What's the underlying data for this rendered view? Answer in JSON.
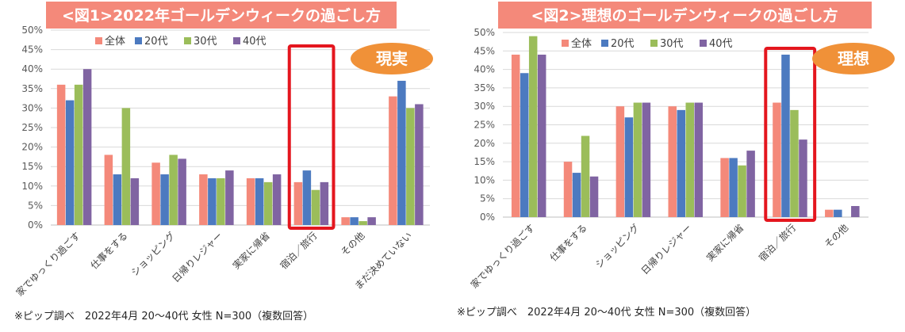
{
  "colors": {
    "title_bg": "#f4897a",
    "badge": "#f09138",
    "highlight": "#e4161e",
    "grid": "#d9d9d9",
    "series": [
      "#f4897a",
      "#4c7ac0",
      "#9bbd5a",
      "#8064a2"
    ]
  },
  "chart_data": [
    {
      "type": "bar",
      "title": "<図1>2022年ゴールデンウィークの過ごし方",
      "badge": "現実",
      "categories": [
        "家でゆっくり過ごす",
        "仕事をする",
        "ショッピング",
        "日帰りレジャー",
        "実家に帰省",
        "宿泊／旅行",
        "その他",
        "まだ決めていない"
      ],
      "series": [
        {
          "name": "全体",
          "values": [
            36,
            18,
            16,
            13,
            12,
            11,
            2,
            33
          ]
        },
        {
          "name": "20代",
          "values": [
            32,
            13,
            13,
            12,
            12,
            14,
            2,
            37
          ]
        },
        {
          "name": "30代",
          "values": [
            36,
            30,
            18,
            12,
            11,
            9,
            1,
            30
          ]
        },
        {
          "name": "40代",
          "values": [
            40,
            12,
            17,
            14,
            13,
            11,
            2,
            31
          ]
        }
      ],
      "ylim": [
        0,
        50
      ],
      "yticks": [
        "0%",
        "5%",
        "10%",
        "15%",
        "20%",
        "25%",
        "30%",
        "35%",
        "40%",
        "45%",
        "50%"
      ],
      "highlight_category": "宿泊／旅行",
      "grid": true,
      "legend": "top",
      "source": "※ピップ調べ　2022年4月 20～40代 女性 N=300（複数回答）"
    },
    {
      "type": "bar",
      "title": "<図2>理想のゴールデンウィークの過ごし方",
      "badge": "理想",
      "categories": [
        "家でゆっくり過ごす",
        "仕事をする",
        "ショッピング",
        "日帰りレジャー",
        "実家に帰省",
        "宿泊／旅行",
        "その他"
      ],
      "series": [
        {
          "name": "全体",
          "values": [
            44,
            15,
            30,
            30,
            16,
            31,
            2
          ]
        },
        {
          "name": "20代",
          "values": [
            39,
            12,
            27,
            29,
            16,
            44,
            2
          ]
        },
        {
          "name": "30代",
          "values": [
            49,
            22,
            31,
            31,
            14,
            29,
            0
          ]
        },
        {
          "name": "40代",
          "values": [
            44,
            11,
            31,
            31,
            18,
            21,
            3
          ]
        }
      ],
      "ylim": [
        0,
        50
      ],
      "yticks": [
        "0%",
        "5%",
        "10%",
        "15%",
        "20%",
        "25%",
        "30%",
        "35%",
        "40%",
        "45%",
        "50%"
      ],
      "highlight_category": "宿泊／旅行",
      "grid": true,
      "legend": "top",
      "source": "※ピップ調べ　2022年4月 20～40代 女性 N=300（複数回答）"
    }
  ]
}
